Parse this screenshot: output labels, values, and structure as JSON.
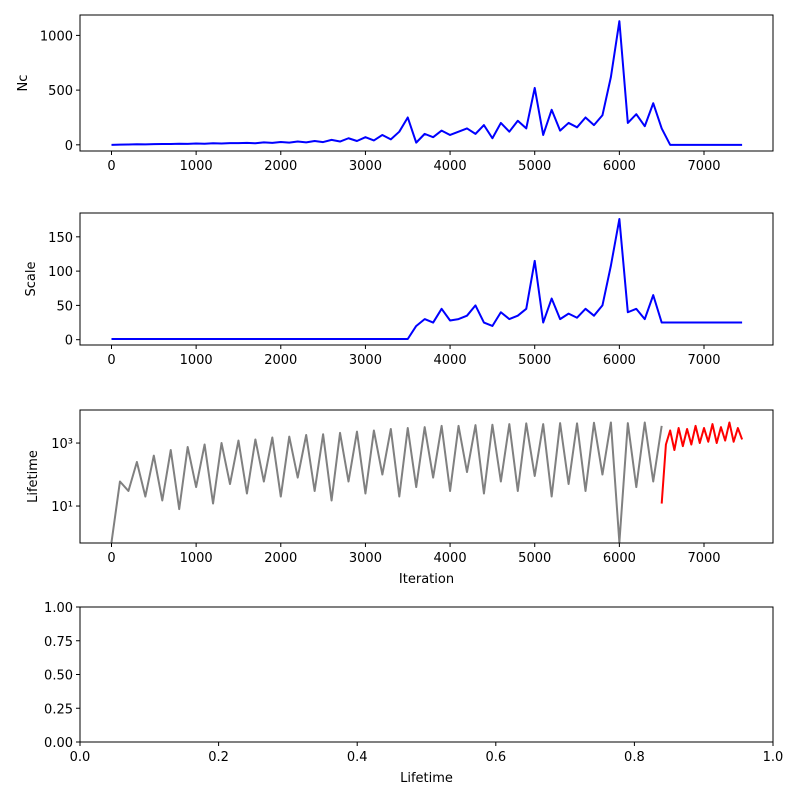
{
  "chart_data": [
    {
      "type": "line",
      "ylabel": "Nc",
      "x": [
        0,
        100,
        200,
        300,
        400,
        500,
        600,
        700,
        800,
        900,
        1000,
        1100,
        1200,
        1300,
        1400,
        1500,
        1600,
        1700,
        1800,
        1900,
        2000,
        2100,
        2200,
        2300,
        2400,
        2500,
        2600,
        2700,
        2800,
        2900,
        3000,
        3100,
        3200,
        3300,
        3400,
        3500,
        3600,
        3700,
        3800,
        3900,
        4000,
        4100,
        4200,
        4300,
        4400,
        4500,
        4600,
        4700,
        4800,
        4900,
        5000,
        5100,
        5200,
        5300,
        5400,
        5500,
        5600,
        5700,
        5800,
        5900,
        6000,
        6100,
        6200,
        6300,
        6400,
        6500,
        6600,
        6700,
        6800,
        6900,
        7000,
        7100,
        7200,
        7300,
        7400,
        7450
      ],
      "series": [
        {
          "color": "#0000ff",
          "values": [
            0,
            2,
            3,
            5,
            4,
            6,
            8,
            7,
            10,
            9,
            12,
            10,
            14,
            12,
            16,
            15,
            18,
            14,
            22,
            18,
            26,
            20,
            30,
            22,
            35,
            25,
            45,
            30,
            60,
            35,
            70,
            40,
            90,
            50,
            120,
            250,
            20,
            100,
            70,
            130,
            90,
            120,
            150,
            100,
            180,
            60,
            200,
            120,
            220,
            150,
            520,
            90,
            320,
            130,
            200,
            160,
            250,
            180,
            270,
            620,
            1130,
            200,
            280,
            170,
            380,
            150,
            0,
            0,
            0,
            0,
            0,
            0,
            0,
            0,
            0,
            0
          ]
        }
      ],
      "xlim": [
        -372,
        7815
      ],
      "ylim": [
        -56.5,
        1186.5
      ],
      "xticks": [
        0,
        1000,
        2000,
        3000,
        4000,
        5000,
        6000,
        7000
      ],
      "yticks": [
        0,
        500,
        1000
      ]
    },
    {
      "type": "line",
      "ylabel": "Scale",
      "x": [
        0,
        100,
        200,
        300,
        400,
        500,
        600,
        700,
        800,
        900,
        1000,
        1100,
        1200,
        1300,
        1400,
        1500,
        1600,
        1700,
        1800,
        1900,
        2000,
        2100,
        2200,
        2300,
        2400,
        2500,
        2600,
        2700,
        2800,
        2900,
        3000,
        3100,
        3200,
        3300,
        3400,
        3500,
        3600,
        3700,
        3800,
        3900,
        4000,
        4100,
        4200,
        4300,
        4400,
        4500,
        4600,
        4700,
        4800,
        4900,
        5000,
        5100,
        5200,
        5300,
        5400,
        5500,
        5600,
        5700,
        5800,
        5900,
        6000,
        6100,
        6200,
        6300,
        6400,
        6500,
        6600,
        6700,
        6800,
        6900,
        7000,
        7100,
        7200,
        7300,
        7400,
        7450
      ],
      "series": [
        {
          "color": "#0000ff",
          "values": [
            1,
            1,
            1,
            1,
            1,
            1,
            1,
            1,
            1,
            1,
            1,
            1,
            1,
            1,
            1,
            1,
            1,
            1,
            1,
            1,
            1,
            1,
            1,
            1,
            1,
            1,
            1,
            1,
            1,
            1,
            1,
            1,
            1,
            1,
            1,
            1,
            20,
            30,
            25,
            45,
            28,
            30,
            35,
            50,
            25,
            20,
            40,
            30,
            35,
            45,
            115,
            25,
            60,
            30,
            38,
            32,
            45,
            35,
            50,
            108,
            176,
            40,
            45,
            30,
            65,
            25,
            25,
            25,
            25,
            25,
            25,
            25,
            25,
            25,
            25,
            25
          ]
        }
      ],
      "xlim": [
        -372,
        7815
      ],
      "ylim": [
        -7.75,
        184.75
      ],
      "xticks": [
        0,
        1000,
        2000,
        3000,
        4000,
        5000,
        6000,
        7000
      ],
      "yticks": [
        0,
        50,
        100,
        150
      ]
    },
    {
      "type": "line",
      "ylabel": "Lifetime",
      "xlabel": "Iteration",
      "log_y": true,
      "series": [
        {
          "color": "#808080",
          "x": [
            0,
            100,
            200,
            300,
            400,
            500,
            600,
            700,
            800,
            900,
            1000,
            1100,
            1200,
            1300,
            1400,
            1500,
            1600,
            1700,
            1800,
            1900,
            2000,
            2100,
            2200,
            2300,
            2400,
            2500,
            2600,
            2700,
            2800,
            2900,
            3000,
            3100,
            3200,
            3300,
            3400,
            3500,
            3600,
            3700,
            3800,
            3900,
            4000,
            4100,
            4200,
            4300,
            4400,
            4500,
            4600,
            4700,
            4800,
            4900,
            5000,
            5100,
            5200,
            5300,
            5400,
            5500,
            5600,
            5700,
            5800,
            5900,
            6000,
            6100,
            6200,
            6300,
            6400,
            6500
          ],
          "values": [
            0.7,
            60,
            30,
            250,
            20,
            400,
            15,
            600,
            8,
            750,
            40,
            900,
            12,
            1000,
            50,
            1200,
            25,
            1300,
            60,
            1500,
            20,
            1600,
            80,
            1800,
            30,
            1900,
            15,
            2100,
            60,
            2300,
            25,
            2500,
            100,
            2800,
            20,
            3000,
            40,
            3200,
            80,
            3500,
            30,
            3500,
            120,
            3700,
            25,
            3800,
            60,
            4000,
            30,
            4200,
            90,
            4000,
            20,
            4300,
            50,
            4200,
            30,
            4400,
            100,
            4500,
            0.7,
            4300,
            40,
            4500,
            60,
            3500
          ]
        },
        {
          "color": "#ff0000",
          "x": [
            6500,
            6550,
            6600,
            6650,
            6700,
            6750,
            6800,
            6850,
            6900,
            6950,
            7000,
            7050,
            7100,
            7150,
            7200,
            7250,
            7300,
            7350,
            7400,
            7450
          ],
          "values": [
            12,
            900,
            2500,
            600,
            3000,
            800,
            2800,
            900,
            3500,
            1000,
            3000,
            1100,
            4000,
            1000,
            3200,
            1200,
            4500,
            1100,
            3000,
            1300
          ]
        }
      ],
      "xlim": [
        -372,
        7815
      ],
      "ylim": [
        0.67,
        11200
      ],
      "xticks": [
        0,
        1000,
        2000,
        3000,
        4000,
        5000,
        6000,
        7000
      ],
      "yticks": [
        {
          "value": 10,
          "label": "10¹"
        },
        {
          "value": 1000,
          "label": "10³"
        }
      ]
    },
    {
      "type": "line",
      "xlabel": "Lifetime",
      "xlim": [
        0,
        1
      ],
      "ylim": [
        0,
        1
      ],
      "xticks": [
        {
          "value": 0,
          "label": "0.0"
        },
        {
          "value": 0.2,
          "label": "0.2"
        },
        {
          "value": 0.4,
          "label": "0.4"
        },
        {
          "value": 0.6,
          "label": "0.6"
        },
        {
          "value": 0.8,
          "label": "0.8"
        },
        {
          "value": 1,
          "label": "1.0"
        }
      ],
      "yticks": [
        {
          "value": 0,
          "label": "0.00"
        },
        {
          "value": 0.25,
          "label": "0.25"
        },
        {
          "value": 0.5,
          "label": "0.50"
        },
        {
          "value": 0.75,
          "label": "0.75"
        },
        {
          "value": 1,
          "label": "1.00"
        }
      ]
    }
  ]
}
